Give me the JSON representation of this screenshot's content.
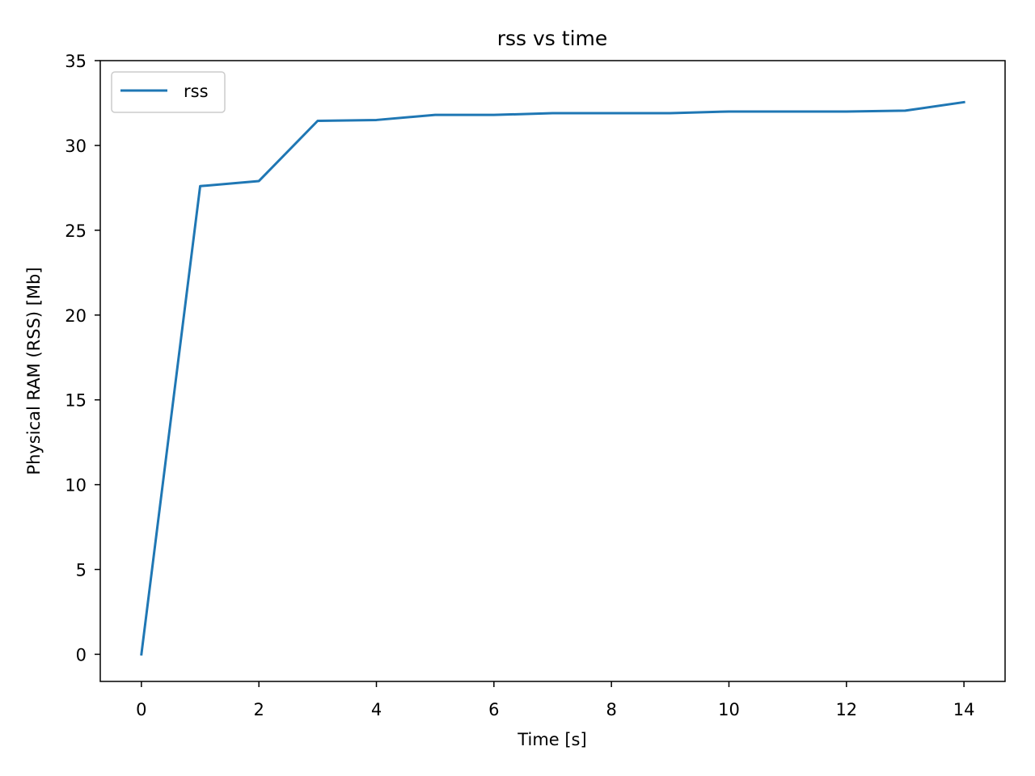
{
  "chart_data": {
    "type": "line",
    "title": "rss vs time",
    "xlabel": "Time [s]",
    "ylabel": "Physical RAM (RSS) [Mb]",
    "xlim": [
      -0.7,
      14.7
    ],
    "ylim": [
      -1.6,
      35
    ],
    "x_ticks": [
      0,
      2,
      4,
      6,
      8,
      10,
      12,
      14
    ],
    "y_ticks": [
      0,
      5,
      10,
      15,
      20,
      25,
      30,
      35
    ],
    "grid": false,
    "legend_position": "top-left",
    "series": [
      {
        "name": "rss",
        "color": "#1f77b4",
        "x": [
          0,
          1,
          2,
          3,
          4,
          5,
          6,
          7,
          8,
          9,
          10,
          11,
          12,
          13,
          14
        ],
        "values": [
          0,
          27.6,
          27.9,
          31.45,
          31.5,
          31.8,
          31.8,
          31.9,
          31.9,
          31.9,
          32.0,
          32.0,
          32.0,
          32.05,
          32.55
        ]
      }
    ]
  }
}
